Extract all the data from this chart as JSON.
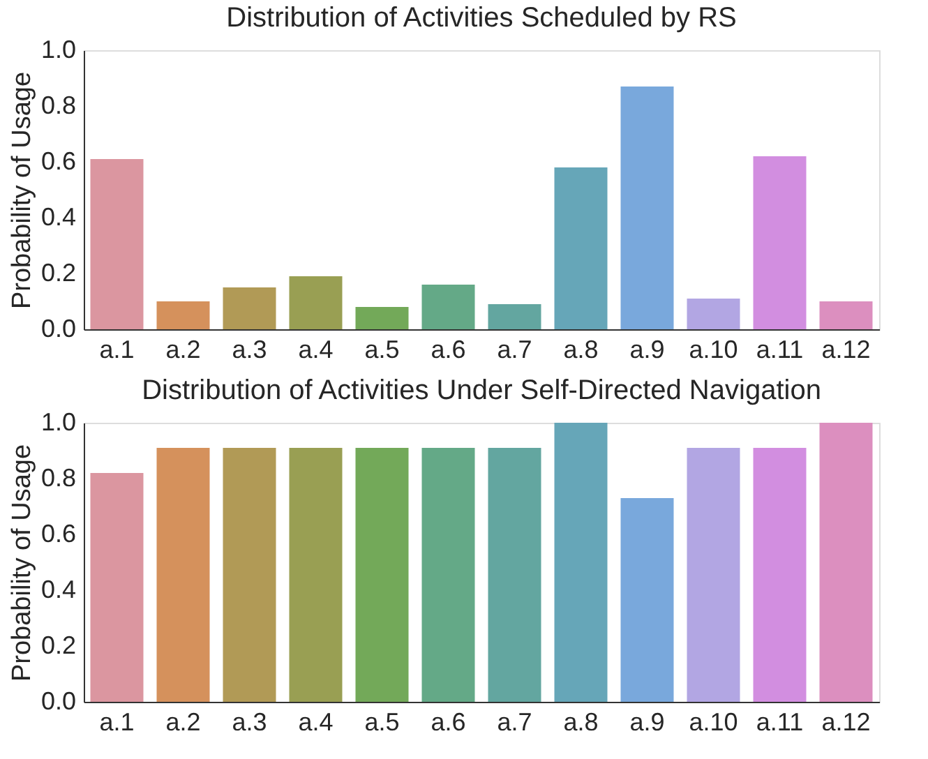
{
  "chart_data": [
    {
      "type": "bar",
      "title": "Distribution of Activities Scheduled by RS",
      "ylabel": "Probability of Usage",
      "categories": [
        "a.1",
        "a.2",
        "a.3",
        "a.4",
        "a.5",
        "a.6",
        "a.7",
        "a.8",
        "a.9",
        "a.10",
        "a.11",
        "a.12"
      ],
      "values": [
        0.61,
        0.1,
        0.15,
        0.19,
        0.08,
        0.16,
        0.09,
        0.58,
        0.87,
        0.11,
        0.62,
        0.1
      ],
      "colors": [
        "#db96a0",
        "#d5915c",
        "#b19a56",
        "#999f53",
        "#73a959",
        "#64a987",
        "#63a6a0",
        "#66a6b8",
        "#79a8dc",
        "#b2a6e3",
        "#d28ee0",
        "#dc8fbf"
      ],
      "ylim": [
        0,
        1
      ],
      "yticks": [
        {
          "value": 0,
          "label": "0.0"
        },
        {
          "value": 0.2,
          "label": "0.2"
        },
        {
          "value": 0.4,
          "label": "0.4"
        },
        {
          "value": 0.6,
          "label": "0.6"
        },
        {
          "value": 0.8,
          "label": "0.8"
        },
        {
          "value": 1,
          "label": "1.0"
        }
      ],
      "grid": false,
      "legend": false
    },
    {
      "type": "bar",
      "title": "Distribution of Activities Under Self-Directed Navigation",
      "ylabel": "Probability of Usage",
      "categories": [
        "a.1",
        "a.2",
        "a.3",
        "a.4",
        "a.5",
        "a.6",
        "a.7",
        "a.8",
        "a.9",
        "a.10",
        "a.11",
        "a.12"
      ],
      "values": [
        0.82,
        0.91,
        0.91,
        0.91,
        0.91,
        0.91,
        0.91,
        1.0,
        0.73,
        0.91,
        0.91,
        1.0
      ],
      "colors": [
        "#db96a0",
        "#d5915c",
        "#b19a56",
        "#999f53",
        "#73a959",
        "#64a987",
        "#63a6a0",
        "#66a6b8",
        "#79a8dc",
        "#b2a6e3",
        "#d28ee0",
        "#dc8fbf"
      ],
      "ylim": [
        0,
        1
      ],
      "yticks": [
        {
          "value": 0,
          "label": "0.0"
        },
        {
          "value": 0.2,
          "label": "0.2"
        },
        {
          "value": 0.4,
          "label": "0.4"
        },
        {
          "value": 0.6,
          "label": "0.6"
        },
        {
          "value": 0.8,
          "label": "0.8"
        },
        {
          "value": 1,
          "label": "1.0"
        }
      ],
      "grid": false,
      "legend": false
    }
  ]
}
